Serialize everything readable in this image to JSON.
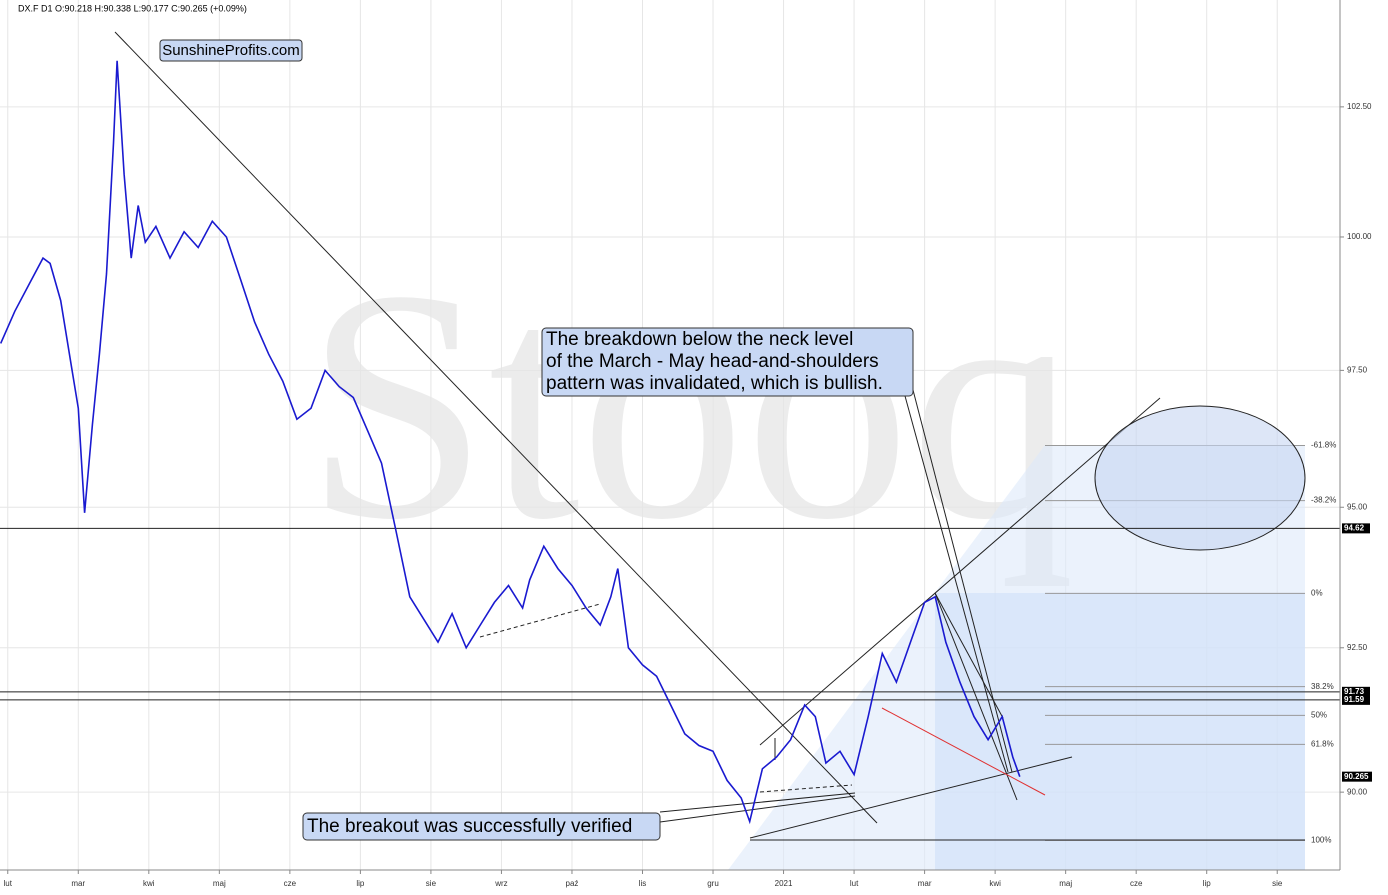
{
  "chart_data": {
    "type": "line",
    "header": "DX.F  D1  O:90.218  H:90.338  L:90.177  C:90.265  (+0.09%)",
    "watermark": "Stooq",
    "brand": "SunshineProfits.com",
    "callouts": [
      [
        "The breakdown below the neck level",
        "of the March - May head-and-shoulders",
        "pattern was invalidated, which is bullish."
      ],
      [
        "The breakout was successfully verified"
      ]
    ],
    "log_scale": true,
    "xlim": [
      -0.11,
      18.89
    ],
    "ylim": [
      88.68,
      104.6
    ],
    "xticks": [
      {
        "value": 0,
        "label": "lut"
      },
      {
        "value": 1,
        "label": "mar"
      },
      {
        "value": 2,
        "label": "kwi"
      },
      {
        "value": 3,
        "label": "maj"
      },
      {
        "value": 4,
        "label": "cze"
      },
      {
        "value": 5,
        "label": "lip"
      },
      {
        "value": 6,
        "label": "sie"
      },
      {
        "value": 7,
        "label": "wrz"
      },
      {
        "value": 8,
        "label": "paź"
      },
      {
        "value": 9,
        "label": "lis"
      },
      {
        "value": 10,
        "label": "gru"
      },
      {
        "value": 11,
        "label": "2021"
      },
      {
        "value": 12,
        "label": "lut"
      },
      {
        "value": 13,
        "label": "mar"
      },
      {
        "value": 14,
        "label": "kwi"
      },
      {
        "value": 15,
        "label": "maj"
      },
      {
        "value": 16,
        "label": "cze"
      },
      {
        "value": 17,
        "label": "lip"
      },
      {
        "value": 18,
        "label": "sie"
      }
    ],
    "yticks": [
      {
        "value": 90,
        "label": "90.00"
      },
      {
        "value": 92.5,
        "label": "92.50"
      },
      {
        "value": 95,
        "label": "95.00"
      },
      {
        "value": 97.5,
        "label": "97.50"
      },
      {
        "value": 100,
        "label": "100.00"
      },
      {
        "value": 102.5,
        "label": "102.50"
      }
    ],
    "grid": true,
    "levels": [
      94.62,
      91.73,
      91.59
    ],
    "last": 90.265,
    "fib_levels": [
      {
        "value": 96.12,
        "label": "-61.8%"
      },
      {
        "value": 95.12,
        "label": "-38.2%"
      },
      {
        "value": 93.46,
        "label": "0%"
      },
      {
        "value": 91.82,
        "label": "38.2%"
      },
      {
        "value": 91.32,
        "label": "50%"
      },
      {
        "value": 90.82,
        "label": "61.8%"
      },
      {
        "value": 89.18,
        "label": "100%"
      }
    ],
    "series": [
      {
        "name": "DX.F",
        "color": "#1a1ad0",
        "x": [
          -0.1,
          0.1,
          0.3,
          0.5,
          0.6,
          0.75,
          0.9,
          1.0,
          1.09,
          1.2,
          1.3,
          1.4,
          1.5,
          1.55,
          1.65,
          1.75,
          1.85,
          1.95,
          2.1,
          2.3,
          2.5,
          2.7,
          2.9,
          3.1,
          3.3,
          3.5,
          3.7,
          3.9,
          4.1,
          4.3,
          4.5,
          4.7,
          4.9,
          5.1,
          5.3,
          5.5,
          5.7,
          5.9,
          6.1,
          6.3,
          6.5,
          6.7,
          6.9,
          7.1,
          7.3,
          7.4,
          7.6,
          7.8,
          8.0,
          8.2,
          8.4,
          8.55,
          8.65,
          8.8,
          9.0,
          9.2,
          9.4,
          9.6,
          9.8,
          10.0,
          10.2,
          10.4,
          10.52,
          10.7,
          10.9,
          11.1,
          11.3,
          11.45,
          11.6,
          11.8,
          12.0,
          12.2,
          12.4,
          12.6,
          12.8,
          13.0,
          13.15,
          13.3,
          13.5,
          13.7,
          13.9,
          14.1,
          14.25,
          14.35
        ],
        "values": [
          98.0,
          98.6,
          99.1,
          99.6,
          99.5,
          98.8,
          97.6,
          96.8,
          94.9,
          96.5,
          97.8,
          99.3,
          101.8,
          103.4,
          101.2,
          99.6,
          100.6,
          99.9,
          100.2,
          99.6,
          100.1,
          99.8,
          100.3,
          100.0,
          99.2,
          98.4,
          97.8,
          97.3,
          96.6,
          96.8,
          97.5,
          97.2,
          97.0,
          96.4,
          95.8,
          94.6,
          93.4,
          93.0,
          92.6,
          93.1,
          92.5,
          92.9,
          93.3,
          93.6,
          93.2,
          93.7,
          94.3,
          93.9,
          93.6,
          93.2,
          92.9,
          93.4,
          93.9,
          92.5,
          92.2,
          92.0,
          91.5,
          91.0,
          90.8,
          90.7,
          90.2,
          89.9,
          89.5,
          90.4,
          90.6,
          90.9,
          91.5,
          91.3,
          90.5,
          90.7,
          90.3,
          91.3,
          92.4,
          91.9,
          92.6,
          93.3,
          93.4,
          92.6,
          91.9,
          91.3,
          90.9,
          91.3,
          90.6,
          90.265
        ]
      }
    ]
  }
}
